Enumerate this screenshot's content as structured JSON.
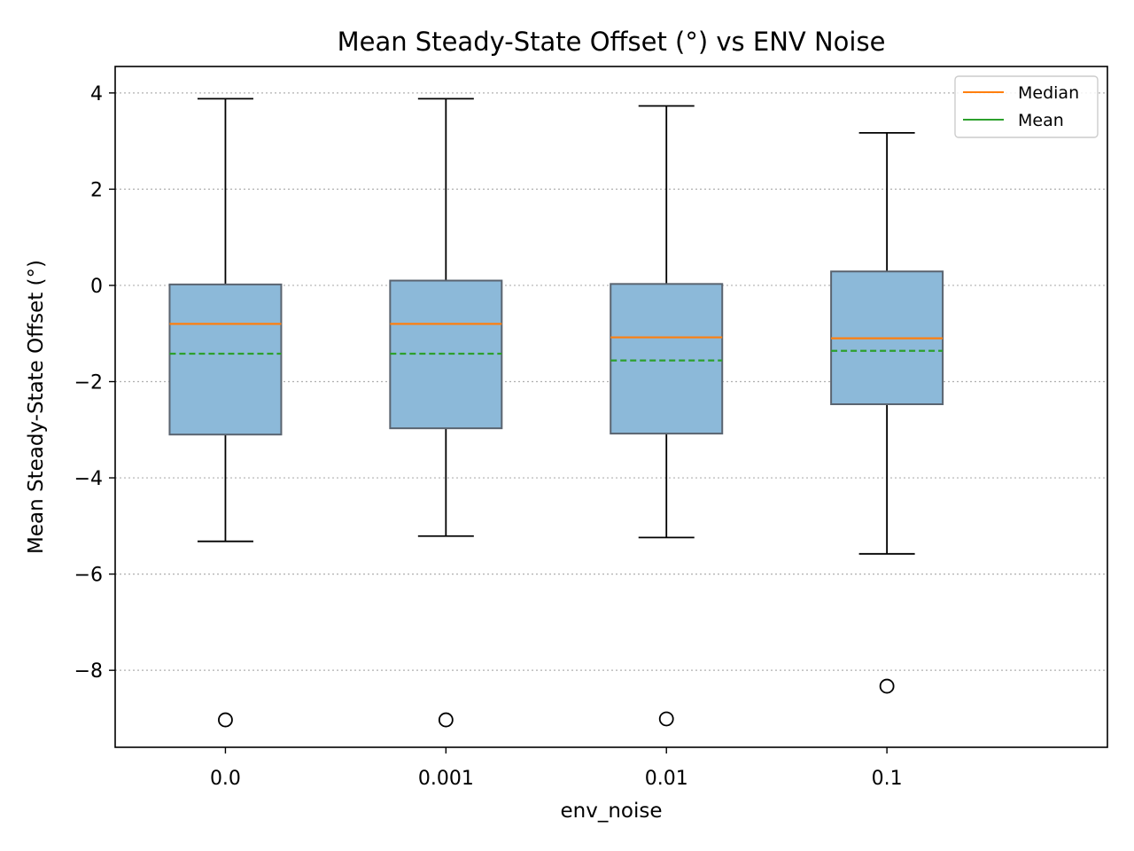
{
  "chart_data": {
    "type": "box",
    "title": "Mean Steady-State Offset (°) vs ENV Noise",
    "xlabel": "env_noise",
    "ylabel": "Mean Steady-State Offset (°)",
    "ylim": [
      -9.6,
      4.55
    ],
    "yticks": [
      4,
      2,
      0,
      -2,
      -4,
      -6,
      -8
    ],
    "ytick_labels": [
      "4",
      "2",
      "0",
      "−2",
      "−4",
      "−6",
      "−8"
    ],
    "grid": "y, dotted",
    "legend": {
      "placement": "top-right",
      "entries": [
        {
          "label": "Median",
          "color": "#ff7f0e",
          "style": "solid"
        },
        {
          "label": "Mean",
          "color": "#2ca02c",
          "style": "solid"
        }
      ]
    },
    "categories": [
      "0.0",
      "0.001",
      "0.01",
      "0.1"
    ],
    "boxes": [
      {
        "category": "0.0",
        "whisker_low": -5.32,
        "q1": -3.1,
        "median": -0.8,
        "mean": -1.42,
        "q3": 0.02,
        "whisker_high": 3.88,
        "outliers": [
          -9.03
        ]
      },
      {
        "category": "0.001",
        "whisker_low": -5.21,
        "q1": -2.97,
        "median": -0.8,
        "mean": -1.42,
        "q3": 0.1,
        "whisker_high": 3.88,
        "outliers": [
          -9.03
        ]
      },
      {
        "category": "0.01",
        "whisker_low": -5.24,
        "q1": -3.08,
        "median": -1.08,
        "mean": -1.56,
        "q3": 0.03,
        "whisker_high": 3.73,
        "outliers": [
          -9.01
        ]
      },
      {
        "category": "0.1",
        "whisker_low": -5.58,
        "q1": -2.47,
        "median": -1.1,
        "mean": -1.36,
        "q3": 0.29,
        "whisker_high": 3.17,
        "outliers": [
          -8.33
        ]
      }
    ],
    "colors": {
      "box_fill": "#8cb9d9",
      "box_edge": "#5a6470",
      "median": "#ff7f0e",
      "mean": "#2ca02c",
      "grid": "#b0b0b0"
    }
  }
}
